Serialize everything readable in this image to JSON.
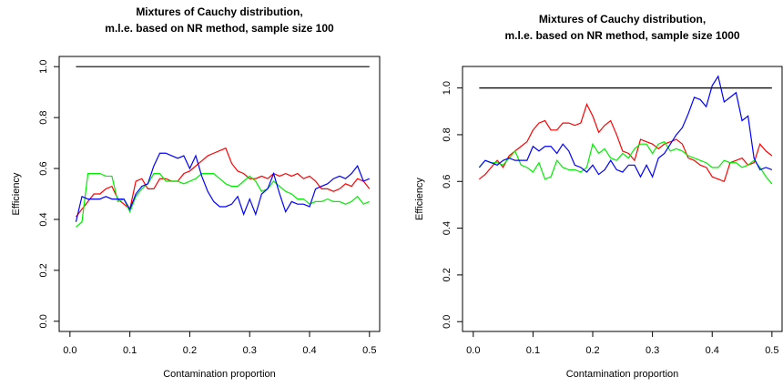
{
  "chart_data": [
    {
      "type": "line",
      "title": [
        "Mixtures of Cauchy distribution,",
        "m.l.e. based on NR method, sample size 100"
      ],
      "xlabel": "Contamination proportion",
      "ylabel": "Efficiency",
      "x": [
        0.01,
        0.02,
        0.03,
        0.04,
        0.05,
        0.06,
        0.07,
        0.08,
        0.09,
        0.1,
        0.11,
        0.12,
        0.13,
        0.14,
        0.15,
        0.16,
        0.17,
        0.18,
        0.19,
        0.2,
        0.21,
        0.22,
        0.23,
        0.24,
        0.25,
        0.26,
        0.27,
        0.28,
        0.29,
        0.3,
        0.31,
        0.32,
        0.33,
        0.34,
        0.35,
        0.36,
        0.37,
        0.38,
        0.39,
        0.4,
        0.41,
        0.42,
        0.43,
        0.44,
        0.45,
        0.46,
        0.47,
        0.48,
        0.49,
        0.5
      ],
      "xlim": [
        -0.018,
        0.517
      ],
      "xticks": [
        {
          "value": 0,
          "label": "0.0"
        },
        0.1,
        0.2,
        0.3,
        0.4,
        0.5
      ],
      "ylim": [
        -0.04,
        1.04
      ],
      "yticks": [
        {
          "value": 0,
          "label": "0.0"
        },
        0.2,
        0.4,
        0.6,
        0.8,
        {
          "value": 1,
          "label": "1.0"
        }
      ],
      "series": [
        {
          "color": "#000000",
          "values": [
            1,
            1,
            1,
            1,
            1,
            1,
            1,
            1,
            1,
            1,
            1,
            1,
            1,
            1,
            1,
            1,
            1,
            1,
            1,
            1,
            1,
            1,
            1,
            1,
            1,
            1,
            1,
            1,
            1,
            1,
            1,
            1,
            1,
            1,
            1,
            1,
            1,
            1,
            1,
            1,
            1,
            1,
            1,
            1,
            1,
            1,
            1,
            1,
            1,
            1
          ]
        },
        {
          "color": "#ff0000",
          "values": [
            0.41,
            0.44,
            0.47,
            0.5,
            0.5,
            0.52,
            0.53,
            0.48,
            0.46,
            0.44,
            0.55,
            0.56,
            0.52,
            0.52,
            0.56,
            0.56,
            0.55,
            0.55,
            0.58,
            0.59,
            0.61,
            0.63,
            0.65,
            0.66,
            0.67,
            0.68,
            0.62,
            0.59,
            0.58,
            0.56,
            0.56,
            0.57,
            0.56,
            0.58,
            0.57,
            0.58,
            0.57,
            0.58,
            0.56,
            0.57,
            0.55,
            0.52,
            0.52,
            0.51,
            0.52,
            0.54,
            0.53,
            0.56,
            0.55,
            0.52
          ]
        },
        {
          "color": "#00ee00",
          "values": [
            0.37,
            0.39,
            0.58,
            0.58,
            0.58,
            0.57,
            0.57,
            0.47,
            0.48,
            0.43,
            0.49,
            0.52,
            0.54,
            0.58,
            0.58,
            0.55,
            0.55,
            0.55,
            0.54,
            0.55,
            0.56,
            0.58,
            0.58,
            0.58,
            0.56,
            0.54,
            0.53,
            0.53,
            0.55,
            0.57,
            0.55,
            0.51,
            0.52,
            0.55,
            0.53,
            0.51,
            0.5,
            0.48,
            0.48,
            0.46,
            0.47,
            0.47,
            0.48,
            0.47,
            0.47,
            0.46,
            0.47,
            0.49,
            0.46,
            0.47
          ]
        },
        {
          "color": "#0000ff",
          "values": [
            0.39,
            0.49,
            0.48,
            0.48,
            0.48,
            0.49,
            0.48,
            0.48,
            0.48,
            0.44,
            0.5,
            0.53,
            0.54,
            0.61,
            0.66,
            0.66,
            0.65,
            0.64,
            0.65,
            0.6,
            0.65,
            0.57,
            0.51,
            0.47,
            0.45,
            0.45,
            0.46,
            0.49,
            0.42,
            0.48,
            0.42,
            0.5,
            0.52,
            0.58,
            0.5,
            0.43,
            0.47,
            0.46,
            0.46,
            0.45,
            0.52,
            0.53,
            0.54,
            0.56,
            0.57,
            0.56,
            0.58,
            0.61,
            0.55,
            0.56
          ]
        }
      ]
    },
    {
      "type": "line",
      "title": [
        "Mixtures of Cauchy distribution,",
        "m.l.e. based on NR method, sample size 1000"
      ],
      "xlabel": "Contamination proportion",
      "ylabel": "Efficiency",
      "x": [
        0.01,
        0.02,
        0.03,
        0.04,
        0.05,
        0.06,
        0.07,
        0.08,
        0.09,
        0.1,
        0.11,
        0.12,
        0.13,
        0.14,
        0.15,
        0.16,
        0.17,
        0.18,
        0.19,
        0.2,
        0.21,
        0.22,
        0.23,
        0.24,
        0.25,
        0.26,
        0.27,
        0.28,
        0.29,
        0.3,
        0.31,
        0.32,
        0.33,
        0.34,
        0.35,
        0.36,
        0.37,
        0.38,
        0.39,
        0.4,
        0.41,
        0.42,
        0.43,
        0.44,
        0.45,
        0.46,
        0.47,
        0.48,
        0.49,
        0.5
      ],
      "xlim": [
        -0.018,
        0.517
      ],
      "xticks": [
        {
          "value": 0,
          "label": "0.0"
        },
        0.1,
        0.2,
        0.3,
        0.4,
        0.5
      ],
      "ylim": [
        -0.042,
        1.092
      ],
      "yticks": [
        {
          "value": 0,
          "label": "0.0"
        },
        0.2,
        0.4,
        0.6,
        0.8,
        {
          "value": 1,
          "label": "1.0"
        }
      ],
      "series": [
        {
          "color": "#000000",
          "values": [
            1,
            1,
            1,
            1,
            1,
            1,
            1,
            1,
            1,
            1,
            1,
            1,
            1,
            1,
            1,
            1,
            1,
            1,
            1,
            1,
            1,
            1,
            1,
            1,
            1,
            1,
            1,
            1,
            1,
            1,
            1,
            1,
            1,
            1,
            1,
            1,
            1,
            1,
            1,
            1,
            1,
            1,
            1,
            1,
            1,
            1,
            1,
            1,
            1,
            1
          ]
        },
        {
          "color": "#ff0000",
          "values": [
            0.61,
            0.63,
            0.66,
            0.69,
            0.66,
            0.71,
            0.73,
            0.75,
            0.77,
            0.82,
            0.85,
            0.86,
            0.82,
            0.82,
            0.85,
            0.85,
            0.84,
            0.85,
            0.93,
            0.88,
            0.81,
            0.84,
            0.86,
            0.8,
            0.73,
            0.72,
            0.69,
            0.78,
            0.77,
            0.76,
            0.74,
            0.76,
            0.77,
            0.78,
            0.76,
            0.7,
            0.69,
            0.67,
            0.66,
            0.62,
            0.61,
            0.6,
            0.68,
            0.69,
            0.7,
            0.67,
            0.68,
            0.76,
            0.73,
            0.71
          ]
        },
        {
          "color": "#00ee00",
          "values": [
            0.66,
            0.69,
            0.68,
            0.68,
            0.67,
            0.7,
            0.73,
            0.67,
            0.66,
            0.64,
            0.68,
            0.61,
            0.62,
            0.69,
            0.66,
            0.65,
            0.65,
            0.64,
            0.66,
            0.76,
            0.72,
            0.74,
            0.7,
            0.69,
            0.72,
            0.7,
            0.74,
            0.76,
            0.76,
            0.72,
            0.76,
            0.77,
            0.73,
            0.74,
            0.73,
            0.71,
            0.7,
            0.69,
            0.68,
            0.66,
            0.66,
            0.69,
            0.68,
            0.68,
            0.66,
            0.67,
            0.69,
            0.66,
            0.62,
            0.59
          ]
        },
        {
          "color": "#0000ff",
          "values": [
            0.66,
            0.69,
            0.68,
            0.67,
            0.69,
            0.7,
            0.69,
            0.69,
            0.69,
            0.75,
            0.73,
            0.75,
            0.75,
            0.72,
            0.76,
            0.73,
            0.67,
            0.66,
            0.64,
            0.67,
            0.63,
            0.65,
            0.69,
            0.65,
            0.64,
            0.67,
            0.67,
            0.62,
            0.67,
            0.62,
            0.7,
            0.72,
            0.76,
            0.8,
            0.83,
            0.89,
            0.96,
            0.95,
            0.92,
            1.01,
            1.05,
            0.94,
            0.96,
            0.98,
            0.86,
            0.88,
            0.7,
            0.65,
            0.66,
            0.65
          ]
        }
      ]
    }
  ]
}
